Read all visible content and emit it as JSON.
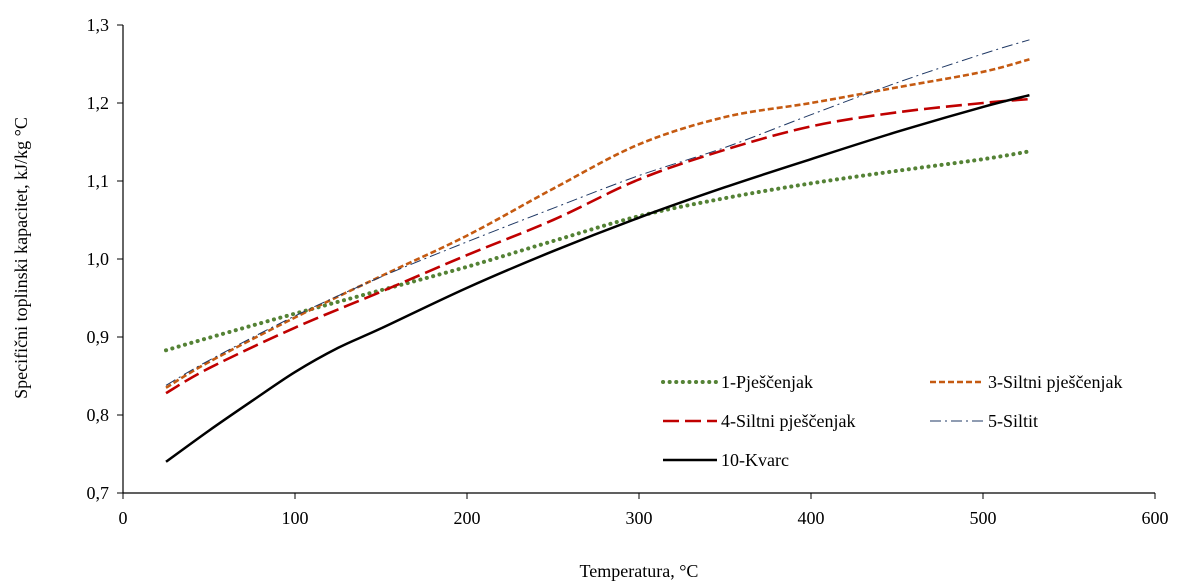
{
  "chart_data": {
    "type": "line",
    "xlabel": "Temperatura, °C",
    "ylabel": "Specifični toplinski  kapacitet, kJ/kg °C",
    "xlim": [
      0,
      600
    ],
    "ylim": [
      0.7,
      1.3
    ],
    "x_ticks": [
      0,
      100,
      200,
      300,
      400,
      500,
      600
    ],
    "x_tick_labels": [
      "0",
      "100",
      "200",
      "300",
      "400",
      "500",
      "600"
    ],
    "y_ticks": [
      0.7,
      0.8,
      0.9,
      1.0,
      1.1,
      1.2,
      1.3
    ],
    "y_tick_labels": [
      "0,7",
      "0,8",
      "0,9",
      "1,0",
      "1,1",
      "1,2",
      "1,3"
    ],
    "grid": false,
    "legend_position": "bottom-right",
    "series": [
      {
        "name": "1-Pješčenjak",
        "color": "#548235",
        "style": "dotted",
        "x": [
          25,
          50,
          100,
          150,
          200,
          250,
          300,
          350,
          400,
          450,
          500,
          527
        ],
        "y": [
          0.883,
          0.899,
          0.93,
          0.96,
          0.99,
          1.023,
          1.055,
          1.078,
          1.097,
          1.113,
          1.128,
          1.138
        ]
      },
      {
        "name": "3-Siltni pješčenjak",
        "color": "#C55A11",
        "style": "short-dash",
        "x": [
          25,
          50,
          100,
          150,
          200,
          250,
          300,
          350,
          400,
          450,
          500,
          527
        ],
        "y": [
          0.835,
          0.868,
          0.925,
          0.978,
          1.03,
          1.09,
          1.147,
          1.182,
          1.2,
          1.22,
          1.24,
          1.256
        ]
      },
      {
        "name": "4-Siltni pješčenjak",
        "color": "#C00000",
        "style": "long-dash",
        "x": [
          25,
          50,
          100,
          150,
          200,
          250,
          300,
          350,
          400,
          450,
          500,
          527
        ],
        "y": [
          0.828,
          0.86,
          0.912,
          0.958,
          1.005,
          1.05,
          1.102,
          1.14,
          1.17,
          1.188,
          1.2,
          1.205
        ]
      },
      {
        "name": "5-Siltit",
        "color": "#1F3864",
        "style": "dash-dot",
        "x": [
          25,
          50,
          100,
          150,
          200,
          250,
          300,
          350,
          400,
          450,
          500,
          527
        ],
        "y": [
          0.838,
          0.87,
          0.927,
          0.977,
          1.022,
          1.065,
          1.107,
          1.143,
          1.185,
          1.226,
          1.263,
          1.281
        ]
      },
      {
        "name": "10-Kvarc",
        "color": "#000000",
        "style": "solid",
        "x": [
          25,
          50,
          75,
          100,
          125,
          150,
          200,
          250,
          300,
          350,
          400,
          450,
          500,
          527
        ],
        "y": [
          0.74,
          0.78,
          0.818,
          0.855,
          0.886,
          0.911,
          0.963,
          1.01,
          1.053,
          1.092,
          1.128,
          1.163,
          1.195,
          1.21
        ]
      }
    ]
  }
}
